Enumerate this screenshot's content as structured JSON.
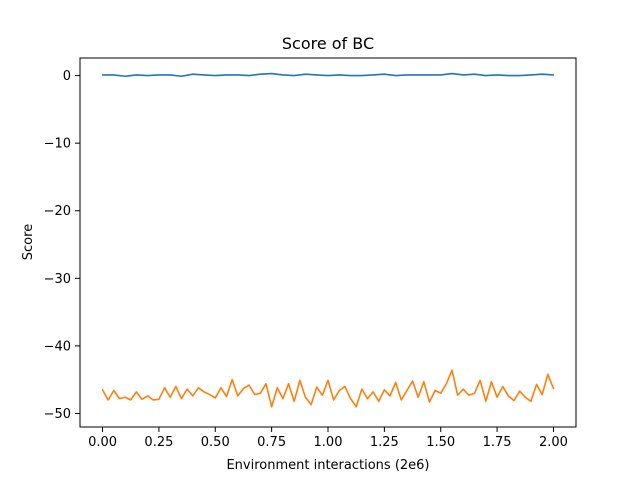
{
  "chart_data": {
    "type": "line",
    "title": "Score of BC",
    "xlabel": "Environment interactions (2e6)",
    "ylabel": "Score",
    "xlim": [
      -0.1,
      2.1
    ],
    "ylim": [
      -52.0,
      2.6
    ],
    "xticks": [
      0.0,
      0.25,
      0.5,
      0.75,
      1.0,
      1.25,
      1.5,
      1.75,
      2.0
    ],
    "xtick_labels": [
      "0.00",
      "0.25",
      "0.50",
      "0.75",
      "1.00",
      "1.25",
      "1.50",
      "1.75",
      "2.00"
    ],
    "yticks": [
      0,
      -10,
      -20,
      -30,
      -40,
      -50
    ],
    "ytick_labels": [
      "0",
      "−10",
      "−20",
      "−30",
      "−40",
      "−50"
    ],
    "grid": false,
    "legend": false,
    "series": [
      {
        "color": "#1f77b4",
        "x": [
          0.0,
          0.05,
          0.1,
          0.15,
          0.2,
          0.25,
          0.3,
          0.35,
          0.4,
          0.45,
          0.5,
          0.55,
          0.6,
          0.65,
          0.7,
          0.75,
          0.8,
          0.85,
          0.9,
          0.95,
          1.0,
          1.05,
          1.1,
          1.15,
          1.2,
          1.25,
          1.3,
          1.35,
          1.4,
          1.45,
          1.5,
          1.55,
          1.6,
          1.65,
          1.7,
          1.75,
          1.8,
          1.85,
          1.9,
          1.95,
          2.0
        ],
        "values": [
          0.1,
          0.1,
          -0.1,
          0.1,
          0.0,
          0.1,
          0.1,
          -0.1,
          0.2,
          0.1,
          0.0,
          0.1,
          0.1,
          0.0,
          0.2,
          0.3,
          0.1,
          0.0,
          0.2,
          0.1,
          0.0,
          0.1,
          0.0,
          0.0,
          0.1,
          0.2,
          0.0,
          0.1,
          0.1,
          0.1,
          0.1,
          0.3,
          0.1,
          0.2,
          0.0,
          0.1,
          0.0,
          0.0,
          0.1,
          0.2,
          0.1
        ]
      },
      {
        "color": "#ff7f0e",
        "x": [
          0.0,
          0.025,
          0.05,
          0.075,
          0.1,
          0.125,
          0.15,
          0.175,
          0.2,
          0.225,
          0.25,
          0.275,
          0.3,
          0.325,
          0.35,
          0.375,
          0.4,
          0.425,
          0.45,
          0.475,
          0.5,
          0.525,
          0.55,
          0.575,
          0.6,
          0.625,
          0.65,
          0.675,
          0.7,
          0.725,
          0.75,
          0.775,
          0.8,
          0.825,
          0.85,
          0.875,
          0.9,
          0.925,
          0.95,
          0.975,
          1.0,
          1.025,
          1.05,
          1.075,
          1.1,
          1.125,
          1.15,
          1.175,
          1.2,
          1.225,
          1.25,
          1.275,
          1.3,
          1.325,
          1.35,
          1.375,
          1.4,
          1.425,
          1.45,
          1.475,
          1.5,
          1.525,
          1.55,
          1.575,
          1.6,
          1.625,
          1.65,
          1.675,
          1.7,
          1.725,
          1.75,
          1.775,
          1.8,
          1.825,
          1.85,
          1.875,
          1.9,
          1.925,
          1.95,
          1.975,
          2.0
        ],
        "values": [
          -46.5,
          -48.0,
          -46.6,
          -47.8,
          -47.6,
          -48.0,
          -46.8,
          -47.9,
          -47.4,
          -48.0,
          -47.9,
          -46.2,
          -47.6,
          -46.0,
          -47.8,
          -46.4,
          -47.4,
          -46.2,
          -46.8,
          -47.2,
          -47.7,
          -46.2,
          -47.5,
          -45.0,
          -47.4,
          -46.3,
          -45.8,
          -47.2,
          -47.0,
          -45.6,
          -49.0,
          -46.2,
          -47.8,
          -45.6,
          -48.2,
          -45.1,
          -47.6,
          -48.7,
          -46.1,
          -47.3,
          -45.1,
          -48.0,
          -46.6,
          -46.0,
          -47.8,
          -49.0,
          -46.4,
          -47.8,
          -46.8,
          -48.2,
          -46.5,
          -47.4,
          -45.4,
          -48.0,
          -46.6,
          -45.2,
          -47.6,
          -45.3,
          -48.3,
          -46.6,
          -47.0,
          -45.6,
          -43.6,
          -47.3,
          -46.4,
          -47.3,
          -47.0,
          -45.1,
          -48.2,
          -45.3,
          -47.6,
          -46.0,
          -47.4,
          -48.1,
          -46.7,
          -47.6,
          -48.2,
          -45.7,
          -47.2,
          -44.2,
          -46.3
        ]
      }
    ]
  }
}
